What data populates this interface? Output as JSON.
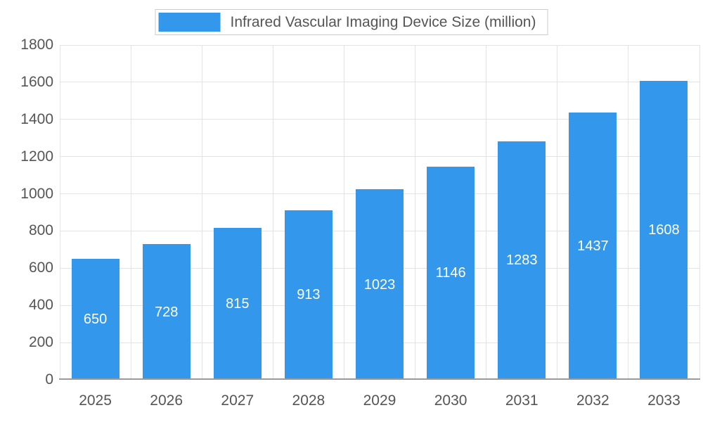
{
  "legend": {
    "label": "Infrared Vascular Imaging Device Size (million)"
  },
  "colors": {
    "bar": "#3398EC",
    "axis_text": "#555555",
    "grid_line": "#E3E3E3",
    "axis_line": "#9A9A9A",
    "value_label": "#FFFFFF",
    "legend_border": "#CCCCCC"
  },
  "chart_data": {
    "type": "bar",
    "title": "Infrared Vascular Imaging Device Size (million)",
    "categories": [
      "2025",
      "2026",
      "2027",
      "2028",
      "2029",
      "2030",
      "2031",
      "2032",
      "2033"
    ],
    "values": [
      650,
      728,
      815,
      913,
      1023,
      1146,
      1283,
      1437,
      1608
    ],
    "series": [
      {
        "name": "Infrared Vascular Imaging Device Size (million)",
        "values": [
          650,
          728,
          815,
          913,
          1023,
          1146,
          1283,
          1437,
          1608
        ]
      }
    ],
    "xlabel": "",
    "ylabel": "",
    "ylim": [
      0,
      1800
    ],
    "ytick_step": 200,
    "ytick_labels": [
      "0",
      "200",
      "400",
      "600",
      "800",
      "1000",
      "1200",
      "1400",
      "1600",
      "1800"
    ],
    "grid": true,
    "legend_position": "top",
    "value_labels_shown": true,
    "value_label_position": "inside-center"
  }
}
